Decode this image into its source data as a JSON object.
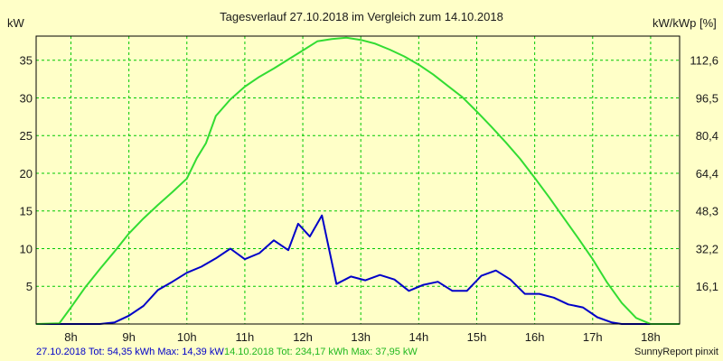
{
  "chart_data": {
    "type": "line",
    "title": "Tagesverlauf 27.10.2018 im Vergleich zum 14.10.2018",
    "ylabel_left": "kW",
    "ylabel_right": "kW/kWp [%]",
    "x_ticks": [
      "8h",
      "9h",
      "10h",
      "11h",
      "12h",
      "13h",
      "14h",
      "15h",
      "16h",
      "17h",
      "18h"
    ],
    "x_tick_hours": [
      8,
      9,
      10,
      11,
      12,
      13,
      14,
      15,
      16,
      17,
      18
    ],
    "xlim": [
      7.4,
      18.5
    ],
    "ylim": [
      0,
      38.2
    ],
    "y_ticks_left": [
      5,
      10,
      15,
      20,
      25,
      30,
      35
    ],
    "y_ticks_right_labels": [
      "16,1",
      "32,2",
      "48,3",
      "64,4",
      "80,4",
      "96,5",
      "112,6"
    ],
    "grid": true,
    "series": [
      {
        "name": "27.10.2018",
        "color": "#0000c8",
        "x": [
          7.4,
          8.0,
          8.5,
          8.75,
          9.0,
          9.25,
          9.5,
          9.75,
          10.0,
          10.25,
          10.5,
          10.75,
          11.0,
          11.25,
          11.5,
          11.75,
          11.92,
          12.12,
          12.33,
          12.58,
          12.83,
          13.08,
          13.33,
          13.58,
          13.83,
          14.08,
          14.33,
          14.58,
          14.83,
          15.08,
          15.33,
          15.58,
          15.83,
          16.08,
          16.33,
          16.58,
          16.83,
          17.08,
          17.33,
          17.5,
          18.0,
          18.5
        ],
        "y": [
          0,
          0,
          0,
          0.2,
          1.1,
          2.4,
          4.5,
          5.6,
          6.8,
          7.6,
          8.7,
          10.0,
          8.6,
          9.4,
          11.1,
          9.8,
          13.3,
          11.6,
          14.4,
          5.3,
          6.3,
          5.8,
          6.5,
          5.9,
          4.4,
          5.2,
          5.6,
          4.4,
          4.4,
          6.4,
          7.1,
          5.9,
          4.0,
          4.0,
          3.5,
          2.6,
          2.2,
          0.9,
          0.2,
          0,
          0,
          0
        ]
      },
      {
        "name": "14.10.2018",
        "color": "#32dc32",
        "x": [
          7.4,
          7.8,
          8.0,
          8.25,
          8.5,
          8.75,
          9.0,
          9.25,
          9.5,
          9.75,
          10.0,
          10.17,
          10.33,
          10.5,
          10.75,
          11.0,
          11.25,
          11.5,
          11.75,
          12.0,
          12.25,
          12.5,
          12.75,
          13.0,
          13.25,
          13.5,
          13.75,
          14.0,
          14.25,
          14.5,
          14.75,
          15.0,
          15.25,
          15.5,
          15.75,
          16.0,
          16.25,
          16.5,
          16.75,
          17.0,
          17.25,
          17.5,
          17.75,
          18.0,
          18.5
        ],
        "y": [
          0,
          0.1,
          2.2,
          4.9,
          7.3,
          9.6,
          12.0,
          14.0,
          15.8,
          17.5,
          19.3,
          22.0,
          24.0,
          27.6,
          29.8,
          31.5,
          32.8,
          33.9,
          35.1,
          36.3,
          37.5,
          37.8,
          38.0,
          37.7,
          37.2,
          36.4,
          35.5,
          34.4,
          33.1,
          31.6,
          30.1,
          28.2,
          26.2,
          24.1,
          21.9,
          19.4,
          16.8,
          14.1,
          11.4,
          8.6,
          5.5,
          2.8,
          0.8,
          0,
          0
        ]
      }
    ],
    "footer": {
      "s1_text": "27.10.2018 Tot: 54,35 kWh Max: 14,39 kW",
      "s2_text": "14.10.2018 Tot: 234,17 kWh Max: 37,95 kW",
      "credit": "SunnyReport pinxit"
    },
    "colors": {
      "background": "#ffffc8",
      "grid": "#00c800",
      "axis": "#000000"
    }
  }
}
